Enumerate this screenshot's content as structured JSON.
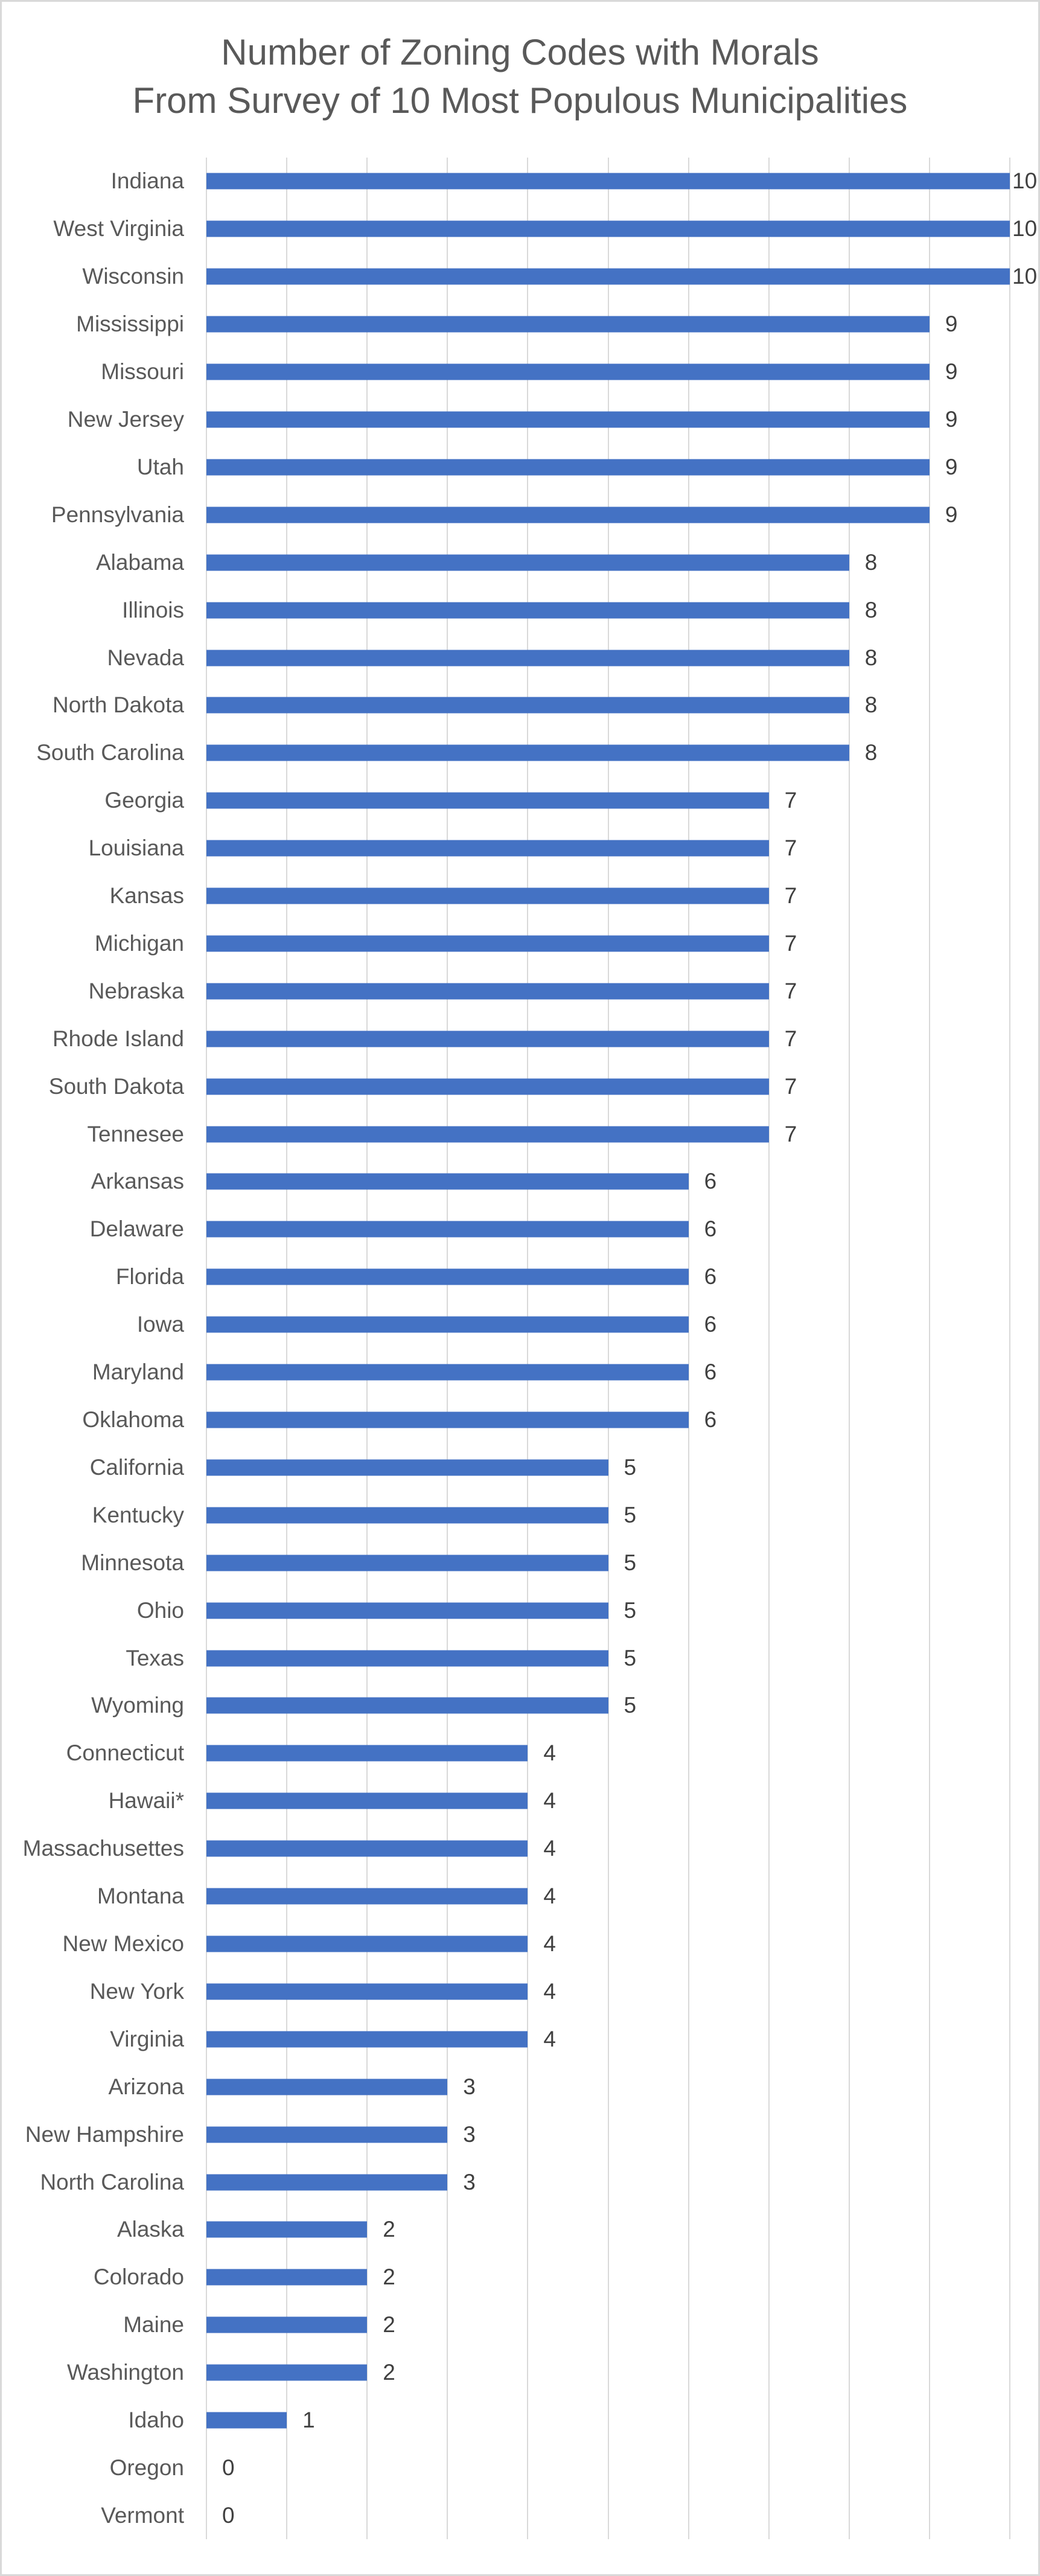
{
  "title": {
    "line1": "Number of Zoning Codes with Morals",
    "line2": "From Survey of 10 Most Populous Municipalities"
  },
  "chart_data": {
    "type": "bar",
    "orientation": "horizontal",
    "title": "Number of Zoning Codes with Morals From Survey of 10 Most Populous Municipalities",
    "categories": [
      "Indiana",
      "West Virginia",
      "Wisconsin",
      "Mississippi",
      "Missouri",
      "New Jersey",
      "Utah",
      "Pennsylvania",
      "Alabama",
      "Illinois",
      "Nevada",
      "North Dakota",
      "South Carolina",
      "Georgia",
      "Louisiana",
      "Kansas",
      "Michigan",
      "Nebraska",
      "Rhode Island",
      "South Dakota",
      "Tennesee",
      "Arkansas",
      "Delaware",
      "Florida",
      "Iowa",
      "Maryland",
      "Oklahoma",
      "California",
      "Kentucky",
      "Minnesota",
      "Ohio",
      "Texas",
      "Wyoming",
      "Connecticut",
      "Hawaii*",
      "Massachusettes",
      "Montana",
      "New Mexico",
      "New York",
      "Virginia",
      "Arizona",
      "New Hampshire",
      "North Carolina",
      "Alaska",
      "Colorado",
      "Maine",
      "Washington",
      "Idaho",
      "Oregon",
      "Vermont"
    ],
    "values": [
      10,
      10,
      10,
      9,
      9,
      9,
      9,
      9,
      8,
      8,
      8,
      8,
      8,
      7,
      7,
      7,
      7,
      7,
      7,
      7,
      7,
      6,
      6,
      6,
      6,
      6,
      6,
      5,
      5,
      5,
      5,
      5,
      5,
      4,
      4,
      4,
      4,
      4,
      4,
      4,
      3,
      3,
      3,
      2,
      2,
      2,
      2,
      1,
      0,
      0
    ],
    "data_labels": [
      10,
      10,
      10,
      9,
      9,
      9,
      9,
      9,
      8,
      8,
      8,
      8,
      8,
      7,
      7,
      7,
      7,
      7,
      7,
      7,
      7,
      6,
      6,
      6,
      6,
      6,
      6,
      5,
      5,
      5,
      5,
      5,
      5,
      4,
      4,
      4,
      4,
      4,
      4,
      4,
      3,
      3,
      3,
      2,
      2,
      2,
      2,
      1,
      0,
      0
    ],
    "xlabel": "",
    "ylabel": "",
    "xlim": [
      0,
      10
    ],
    "xticks": [
      0,
      1,
      2,
      3,
      4,
      5,
      6,
      7,
      8,
      9,
      10
    ],
    "x_tick_labels_visible": false,
    "grid": "vertical",
    "legend": "none",
    "bar_color": "#4472C4"
  },
  "colors": {
    "bar": "#4472C4",
    "gridline": "#D9D9D9",
    "title_text": "#595959",
    "category_text": "#595959",
    "value_text": "#404040",
    "border": "#D9D9D9",
    "background": "#FFFFFF"
  }
}
